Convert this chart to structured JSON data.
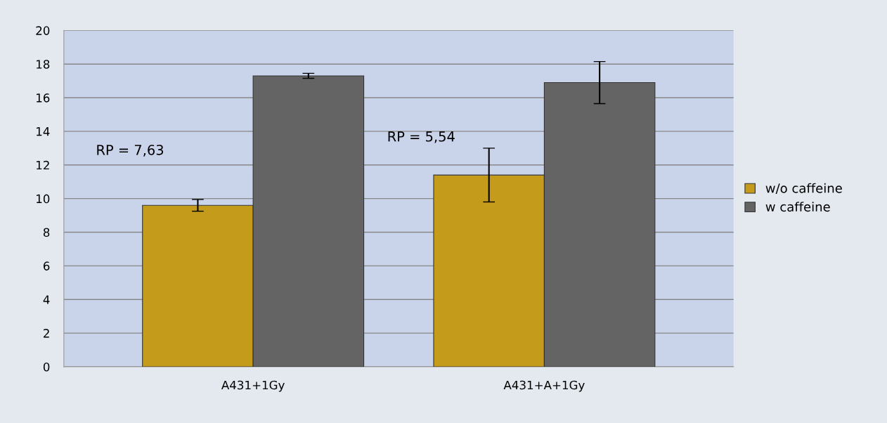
{
  "chart_data": {
    "type": "bar",
    "categories": [
      "A431+1Gy",
      "A431+A+1Gy"
    ],
    "series": [
      {
        "name": "w/o caffeine",
        "color": "#c49b1a",
        "values": [
          9.6,
          11.4
        ],
        "errors": [
          0.35,
          1.6
        ]
      },
      {
        "name": "w caffeine",
        "color": "#646464",
        "values": [
          17.3,
          16.9
        ],
        "errors": [
          0.15,
          1.25
        ]
      }
    ],
    "annotations": [
      "RP = 7,63",
      "RP = 5,54"
    ],
    "ylim": [
      0,
      20
    ],
    "yticks": [
      0,
      2,
      4,
      6,
      8,
      10,
      12,
      14,
      16,
      18,
      20
    ],
    "grid": "y",
    "legend": "right"
  }
}
